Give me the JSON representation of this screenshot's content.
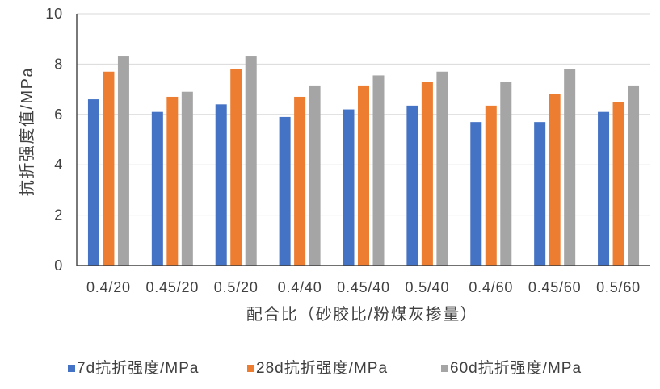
{
  "chart_data": {
    "type": "bar",
    "categories": [
      "0.4/20",
      "0.45/20",
      "0.5/20",
      "0.4/40",
      "0.45/40",
      "0.5/40",
      "0.4/60",
      "0.45/60",
      "0.5/60"
    ],
    "series": [
      {
        "name": "7d抗折强度/MPa",
        "color": "#4472C4",
        "values": [
          6.6,
          6.1,
          6.4,
          5.9,
          6.2,
          6.35,
          5.7,
          5.7,
          6.1
        ]
      },
      {
        "name": "28d抗折强度/MPa",
        "color": "#ED7D31",
        "values": [
          7.7,
          6.7,
          7.8,
          6.7,
          7.15,
          7.3,
          6.35,
          6.8,
          6.5
        ]
      },
      {
        "name": "60d抗折强度/MPa",
        "color": "#A5A5A5",
        "values": [
          8.3,
          6.9,
          8.3,
          7.15,
          7.55,
          7.7,
          7.3,
          7.8,
          7.15
        ]
      }
    ],
    "xlabel": "配合比（砂胶比/粉煤灰掺量）",
    "ylabel": "抗折强度值/MPa",
    "ylim": [
      0,
      10
    ],
    "yticks": [
      0,
      2,
      4,
      6,
      8,
      10
    ],
    "grid": true,
    "legend": "bottom"
  }
}
